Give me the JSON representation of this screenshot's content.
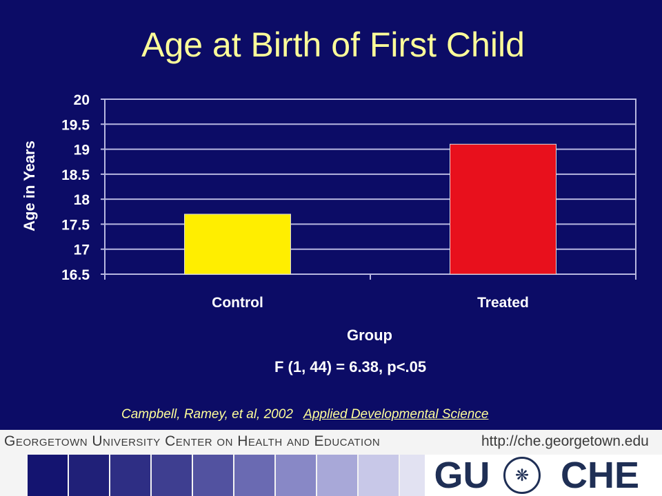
{
  "slide": {
    "title": "Age at Birth of First Child",
    "stats_note": "F (1, 44) = 6.38, p<.05",
    "citation_authors": "Campbell, Ramey, et al, 2002",
    "citation_journal": "Applied Developmental Science"
  },
  "footer": {
    "org_name": "Georgetown University Center on Health and Education",
    "url": "http://che.georgetown.edu",
    "logo_left": "GU",
    "logo_right": "CHE",
    "seal_icon": "university-seal-icon"
  },
  "chart_data": {
    "type": "bar",
    "categories": [
      "Control",
      "Treated"
    ],
    "values": [
      17.7,
      19.1
    ],
    "bar_colors": [
      "#ffee00",
      "#e8101c"
    ],
    "xlabel": "Group",
    "ylabel": "Age in Years",
    "ylim": [
      16.5,
      20
    ],
    "yticks": [
      "20",
      "19.5",
      "19",
      "18.5",
      "18",
      "17.5",
      "17",
      "16.5"
    ],
    "grid": true,
    "plot_background": "#0c0c66",
    "grid_color": "#b8b8e0"
  }
}
